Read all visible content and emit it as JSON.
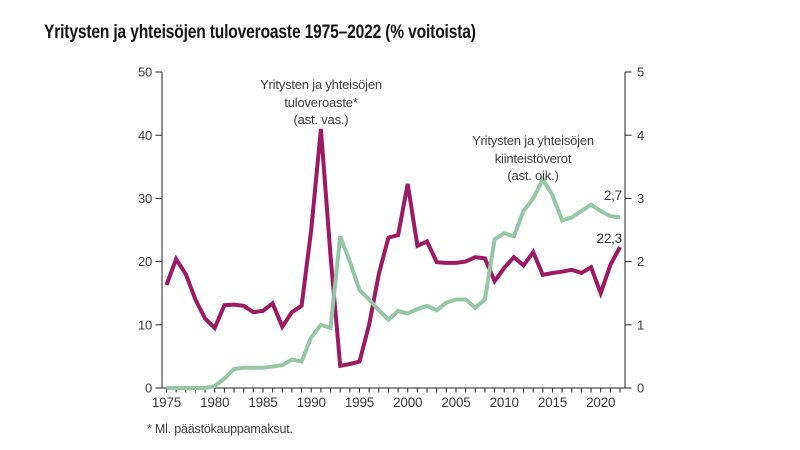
{
  "title": "Yritysten ja yhteisöjen tuloveroaste 1975–2022 (% voitoista)",
  "footnote": "* Ml. päästökauppamaksut.",
  "colors": {
    "income_tax_line": "#9C1A63",
    "property_tax_line": "#95C7A6",
    "axis": "#222222",
    "tick_label": "#3a3a3a",
    "background": "#ffffff"
  },
  "annotations": {
    "income_tax": {
      "line1": "Yritysten ja yhteisöjen",
      "line2": "tuloveroaste*",
      "line3": "(ast. vas.)"
    },
    "property_tax": {
      "line1": "Yritysten ja yhteisöjen",
      "line2": "kiinteistöverot",
      "line3": "(ast. oik.)"
    }
  },
  "end_labels": {
    "property_tax": "2,7",
    "income_tax": "22,3"
  },
  "chart_data": {
    "type": "line",
    "title": "Yritysten ja yhteisöjen tuloveroaste 1975–2022 (% voitoista)",
    "grid": false,
    "x": [
      1975,
      1976,
      1977,
      1978,
      1979,
      1980,
      1981,
      1982,
      1983,
      1984,
      1985,
      1986,
      1987,
      1988,
      1989,
      1990,
      1991,
      1992,
      1993,
      1994,
      1995,
      1996,
      1997,
      1998,
      1999,
      2000,
      2001,
      2002,
      2003,
      2004,
      2005,
      2006,
      2007,
      2008,
      2009,
      2010,
      2011,
      2012,
      2013,
      2014,
      2015,
      2016,
      2017,
      2018,
      2019,
      2020,
      2021,
      2022
    ],
    "x_tick_labels": [
      1975,
      1980,
      1985,
      1990,
      1995,
      2000,
      2005,
      2010,
      2015,
      2020
    ],
    "left_axis": {
      "range": [
        0,
        50
      ],
      "ticks": [
        0,
        10,
        20,
        30,
        40,
        50
      ]
    },
    "right_axis": {
      "range": [
        0,
        5
      ],
      "ticks": [
        0,
        1,
        2,
        3,
        4,
        5
      ]
    },
    "series": [
      {
        "name": "Yritysten ja yhteisöjen tuloveroaste* (ast. vas.)",
        "axis": "left",
        "color": "#9C1A63",
        "last_value_label": "22,3",
        "values": [
          16.3,
          20.4,
          18.0,
          14.0,
          11.0,
          9.5,
          13.1,
          13.2,
          13.0,
          12.0,
          12.2,
          13.4,
          9.7,
          12.0,
          13.0,
          25.0,
          41.0,
          21.0,
          3.5,
          3.8,
          4.2,
          10.0,
          18.0,
          23.8,
          24.2,
          32.3,
          22.5,
          23.2,
          19.9,
          19.8,
          19.8,
          20.0,
          20.7,
          20.5,
          16.9,
          19.0,
          20.7,
          19.4,
          21.5,
          17.9,
          18.2,
          18.4,
          18.7,
          18.2,
          19.1,
          15.0,
          19.5,
          22.3
        ]
      },
      {
        "name": "Yritysten ja yhteisöjen kiinteistöverot (ast. oik.)",
        "axis": "right",
        "color": "#95C7A6",
        "last_value_label": "2,7",
        "values": [
          0,
          0,
          0,
          0,
          0,
          0.03,
          0.15,
          0.3,
          0.32,
          0.32,
          0.32,
          0.34,
          0.36,
          0.45,
          0.42,
          0.8,
          1.0,
          0.95,
          2.4,
          2.0,
          1.55,
          1.4,
          1.23,
          1.08,
          1.22,
          1.18,
          1.25,
          1.3,
          1.23,
          1.35,
          1.4,
          1.4,
          1.27,
          1.4,
          2.35,
          2.45,
          2.4,
          2.8,
          3.0,
          3.3,
          3.05,
          2.65,
          2.7,
          2.8,
          2.9,
          2.8,
          2.72,
          2.7
        ]
      }
    ]
  }
}
